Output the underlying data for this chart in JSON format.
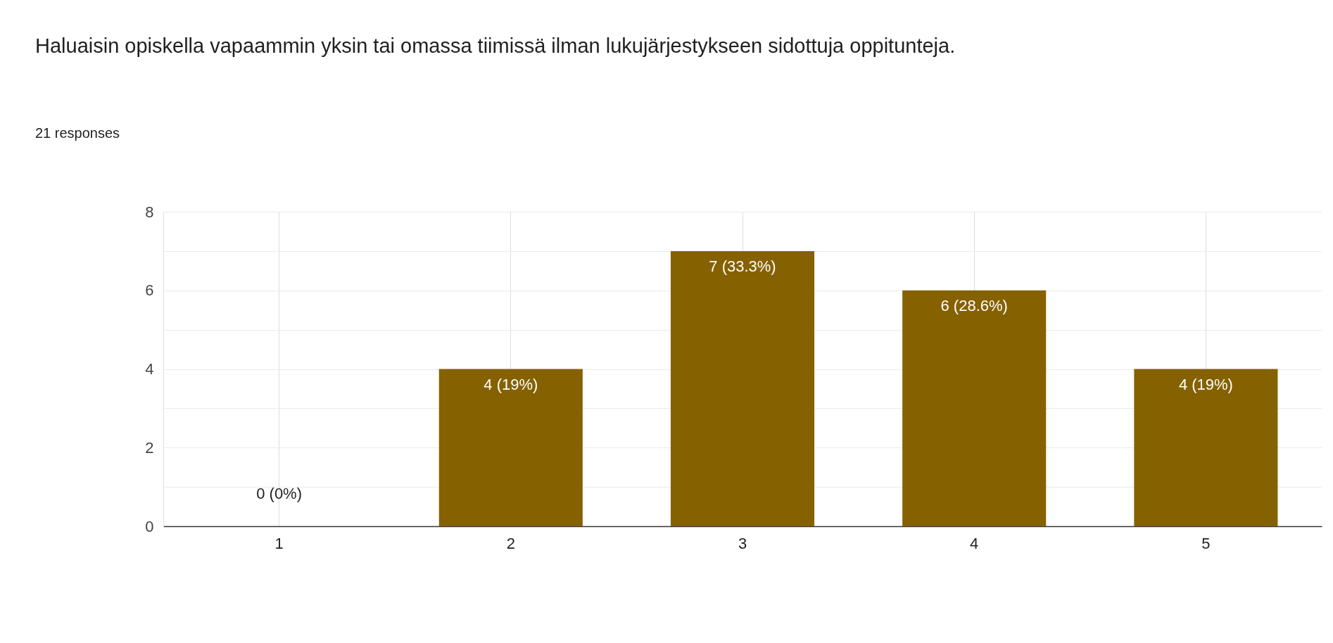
{
  "chart_data": {
    "type": "bar",
    "title": "Haluaisin opiskella vapaammin yksin tai omassa tiimissä ilman lukujärjestykseen sidottuja oppitunteja.",
    "subtitle": "21 responses",
    "categories": [
      "1",
      "2",
      "3",
      "4",
      "5"
    ],
    "values": [
      0,
      4,
      7,
      6,
      4
    ],
    "value_labels": [
      "0 (0%)",
      "4 (19%)",
      "7 (33.3%)",
      "6 (28.6%)",
      "4 (19%)"
    ],
    "color": "#866100",
    "ylim": [
      0,
      8
    ],
    "yticks": [
      0,
      {
        "value": 1,
        "label": null
      },
      2,
      {
        "value": 3,
        "label": null
      },
      4,
      {
        "value": 5,
        "label": null
      },
      6,
      {
        "value": 7,
        "label": null
      },
      8
    ],
    "grid": true
  }
}
